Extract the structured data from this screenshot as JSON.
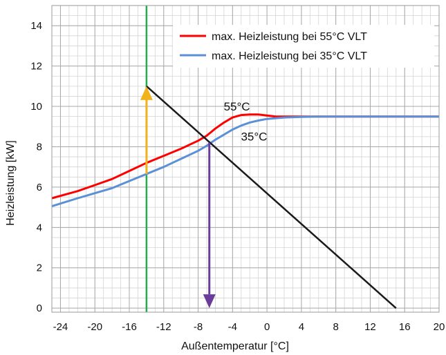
{
  "chart_data": {
    "type": "line",
    "title": "",
    "xlabel": "Außentemperatur [°C]",
    "ylabel": "Heizleistung [kW]",
    "xlim": [
      -25,
      20
    ],
    "ylim": [
      -0.2,
      15
    ],
    "x_ticks": [
      -24,
      -20,
      -16,
      -12,
      -8,
      -4,
      0,
      4,
      8,
      12,
      16,
      20
    ],
    "y_ticks": [
      0,
      2,
      4,
      6,
      8,
      10,
      12,
      14
    ],
    "x_tick_labels": [
      "-24",
      "-20",
      "-16",
      "-12",
      "-8",
      "-4",
      "0",
      "4",
      "8",
      "12",
      "16",
      "20"
    ],
    "y_tick_labels": [
      "0",
      "2",
      "4",
      "6",
      "8",
      "10",
      "12",
      "14"
    ],
    "grid": true,
    "minor_grid_step_x": 1,
    "minor_grid_step_y": 0.5,
    "legend_position": "top-right",
    "series": [
      {
        "name": "max. Heizleistung bei 55°C VLT",
        "color": "#ff0000",
        "x": [
          -25,
          -22,
          -20,
          -18,
          -16,
          -14,
          -12,
          -10,
          -8,
          -7,
          -6,
          -5,
          -4,
          -3,
          -2,
          -1,
          0,
          1,
          2,
          4,
          6,
          8,
          10,
          12,
          14,
          16,
          18,
          20
        ],
        "y": [
          5.45,
          5.8,
          6.1,
          6.4,
          6.8,
          7.2,
          7.55,
          7.9,
          8.3,
          8.55,
          8.9,
          9.2,
          9.45,
          9.57,
          9.6,
          9.6,
          9.55,
          9.5,
          9.5,
          9.5,
          9.5,
          9.5,
          9.5,
          9.5,
          9.5,
          9.5,
          9.5,
          9.5
        ]
      },
      {
        "name": "max. Heizleistung bei 35°C VLT",
        "color": "#5b8fd6",
        "x": [
          -25,
          -22,
          -20,
          -18,
          -16,
          -14,
          -12,
          -10,
          -8,
          -7,
          -6,
          -5,
          -4,
          -3,
          -2,
          -1,
          0,
          2,
          4,
          6,
          8,
          10,
          12,
          14,
          16,
          18,
          20
        ],
        "y": [
          5.05,
          5.45,
          5.7,
          5.95,
          6.3,
          6.65,
          7.0,
          7.4,
          7.8,
          8.05,
          8.35,
          8.6,
          8.85,
          9.05,
          9.2,
          9.3,
          9.38,
          9.45,
          9.48,
          9.5,
          9.5,
          9.5,
          9.5,
          9.5,
          9.5,
          9.5,
          9.5
        ]
      }
    ],
    "lines": [
      {
        "kind": "heating-load",
        "color": "#1a1a1a",
        "x": [
          -14,
          15
        ],
        "y": [
          11.0,
          0
        ]
      },
      {
        "kind": "design-temperature",
        "color": "#1fae4b",
        "x": [
          -14,
          -14
        ],
        "y": [
          -0.2,
          15
        ]
      }
    ],
    "arrows": [
      {
        "kind": "upward",
        "color": "#f2b21b",
        "x": [
          -14,
          -14
        ],
        "y": [
          6.65,
          11.0
        ]
      },
      {
        "kind": "downward",
        "color": "#6a3d9a",
        "x": [
          -6.7,
          -6.7
        ],
        "y": [
          8.2,
          0
        ]
      }
    ],
    "annotations": [
      {
        "text": "55°C",
        "x": -3.5,
        "y": 9.8
      },
      {
        "text": "35°C",
        "x": -1.5,
        "y": 8.3
      }
    ]
  }
}
